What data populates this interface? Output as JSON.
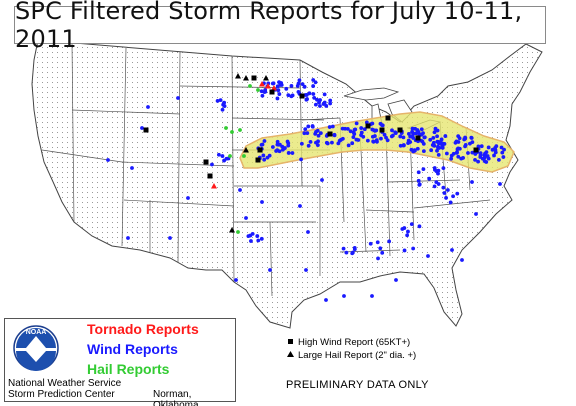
{
  "title": "SPC Filtered Storm Reports for July 10-11, 2011",
  "legend": {
    "tornado_label": "Tornado Reports",
    "wind_label": "Wind Reports",
    "hail_label": "Hail Reports",
    "logo_text": "NOAA",
    "org_line1": "National Weather Service",
    "org_line2": "Storm Prediction Center",
    "location": "Norman, Oklahoma"
  },
  "key": {
    "high_wind": "High Wind Report (65KT+)",
    "large_hail": "Large Hail Report (2\" dia. +)"
  },
  "footer_note": "PRELIMINARY DATA ONLY",
  "colors": {
    "tornado": "#ff1a1a",
    "wind": "#1a1aff",
    "hail": "#33cc33",
    "outlook_fill": "#e6e66e",
    "outlook_border": "#e6b46a"
  }
}
